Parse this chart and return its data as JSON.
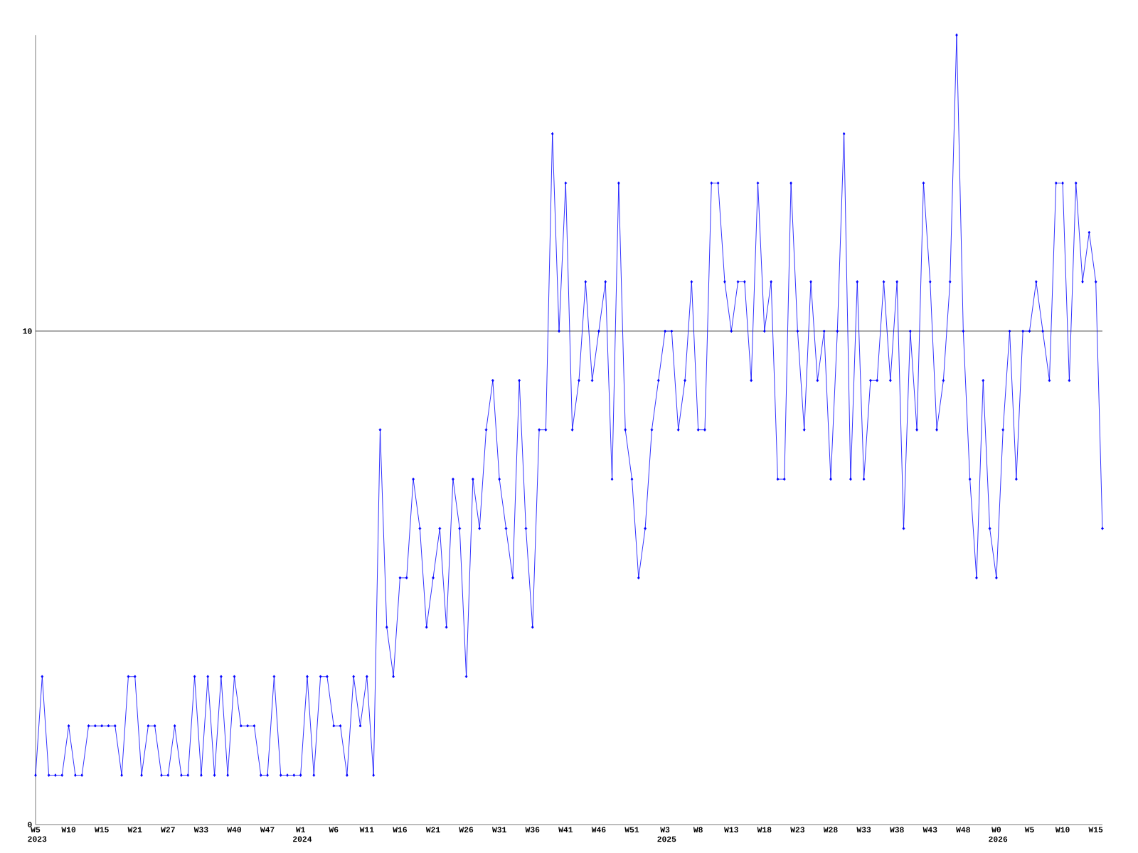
{
  "chart_data": {
    "type": "line",
    "categories": [
      "W5 2023",
      null,
      null,
      null,
      null,
      "W10",
      null,
      null,
      null,
      null,
      "W15",
      null,
      null,
      null,
      null,
      "W21",
      null,
      null,
      null,
      null,
      "W27",
      null,
      null,
      null,
      null,
      "W33",
      null,
      null,
      null,
      null,
      "W40",
      null,
      null,
      null,
      null,
      "W47",
      null,
      null,
      null,
      null,
      "W1 2024",
      null,
      null,
      null,
      null,
      "W6",
      null,
      null,
      null,
      null,
      "W11",
      null,
      null,
      null,
      null,
      "W16",
      null,
      null,
      null,
      null,
      "W21",
      null,
      null,
      null,
      null,
      "W26",
      null,
      null,
      null,
      null,
      "W31",
      null,
      null,
      null,
      null,
      "W36",
      null,
      null,
      null,
      null,
      "W41",
      null,
      null,
      null,
      null,
      "W46",
      null,
      null,
      null,
      null,
      "W51",
      null,
      null,
      null,
      null,
      "W3 2025",
      null,
      null,
      null,
      null,
      "W8",
      null,
      null,
      null,
      null,
      "W13",
      null,
      null,
      null,
      null,
      "W18",
      null,
      null,
      null,
      null,
      "W23",
      null,
      null,
      null,
      null,
      "W28",
      null,
      null,
      null,
      null,
      "W33",
      null,
      null,
      null,
      null,
      "W38",
      null,
      null,
      null,
      null,
      "W43",
      null,
      null,
      null,
      null,
      "W48",
      null,
      null,
      null,
      null,
      "W0 2026",
      null,
      null,
      null,
      null,
      "W5",
      null,
      null,
      null,
      null,
      "W10",
      null,
      null,
      null,
      null,
      "W15",
      null
    ],
    "series": [
      {
        "color": "#0000ff",
        "values": [
          1,
          3,
          1,
          1,
          1,
          2,
          1,
          1,
          2,
          2,
          2,
          2,
          2,
          1,
          3,
          3,
          1,
          2,
          2,
          1,
          1,
          2,
          1,
          1,
          3,
          1,
          3,
          1,
          3,
          1,
          3,
          2,
          2,
          2,
          1,
          1,
          3,
          1,
          1,
          1,
          1,
          3,
          1,
          3,
          3,
          2,
          2,
          1,
          3,
          2,
          3,
          1,
          8,
          4,
          3,
          5,
          5,
          7,
          6,
          4,
          5,
          6,
          4,
          7,
          6,
          3,
          7,
          6,
          8,
          9,
          7,
          6,
          5,
          9,
          6,
          4,
          8,
          8,
          14,
          10,
          13,
          8,
          9,
          11,
          9,
          10,
          11,
          7,
          13,
          8,
          7,
          5,
          6,
          8,
          9,
          10,
          10,
          8,
          9,
          11,
          8,
          8,
          13,
          13,
          11,
          10,
          11,
          11,
          9,
          13,
          10,
          11,
          7,
          7,
          13,
          10,
          8,
          11,
          9,
          10,
          7,
          10,
          14,
          7,
          11,
          7,
          9,
          9,
          11,
          9,
          11,
          6,
          10,
          8,
          13,
          11,
          8,
          9,
          11,
          16,
          10,
          7,
          5,
          9,
          6,
          5,
          8,
          10,
          7,
          10,
          10,
          11,
          10,
          9,
          13,
          13,
          9,
          13,
          11,
          12,
          11,
          6
        ]
      }
    ],
    "ylim": [
      0,
      16
    ],
    "yticks": [
      0,
      10
    ],
    "ref_lines": [
      {
        "axis": "y",
        "value": 10,
        "color": "#000000"
      }
    ],
    "marker": "diamond",
    "line_style": "solid"
  }
}
